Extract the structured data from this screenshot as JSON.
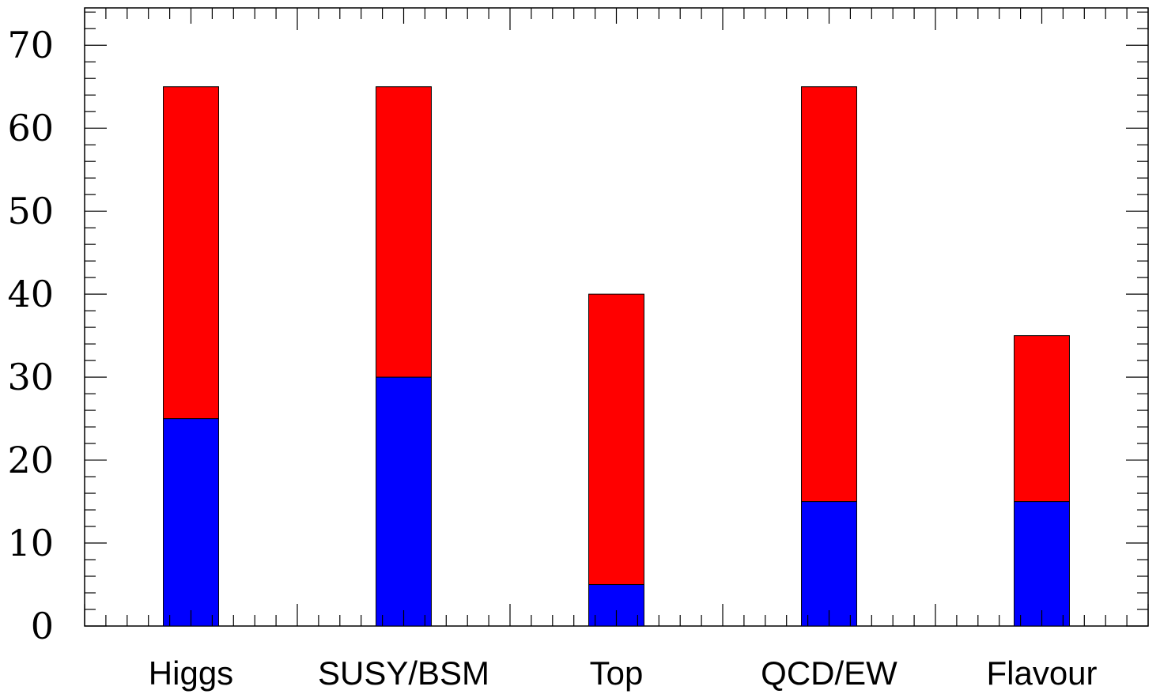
{
  "chart_data": {
    "type": "bar",
    "stacked": true,
    "categories": [
      "Higgs",
      "SUSY/BSM",
      "Top",
      "QCD/EW",
      "Flavour"
    ],
    "series": [
      {
        "values": [
          25,
          30,
          5,
          15,
          15
        ],
        "color": "#0000ff"
      },
      {
        "values": [
          40,
          35,
          35,
          50,
          20
        ],
        "color": "#ff0000"
      }
    ],
    "ylim": [
      0,
      74.5
    ],
    "yticks": [
      0,
      10,
      20,
      30,
      40,
      50,
      60,
      70
    ],
    "grid": false,
    "legend": false
  }
}
